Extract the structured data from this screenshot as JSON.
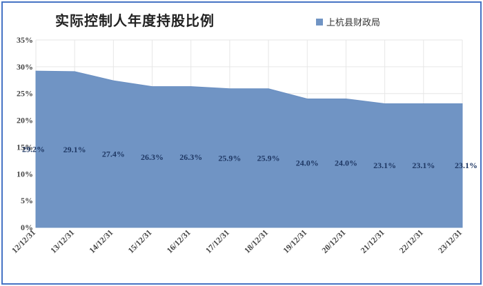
{
  "chart_data": {
    "type": "area",
    "title": "实际控制人年度持股比例",
    "series": [
      {
        "name": "上杭县财政局",
        "values": [
          29.2,
          29.1,
          27.4,
          26.3,
          26.3,
          25.9,
          25.9,
          24.0,
          24.0,
          23.1,
          23.1,
          23.1
        ],
        "data_labels": [
          "29.2%",
          "29.1%",
          "27.4%",
          "26.3%",
          "26.3%",
          "25.9%",
          "25.9%",
          "24.0%",
          "24.0%",
          "23.1%",
          "23.1%",
          "23.1%"
        ]
      }
    ],
    "categories": [
      "12/12/31",
      "13/12/31",
      "14/12/31",
      "15/12/31",
      "16/12/31",
      "17/12/31",
      "18/12/31",
      "19/12/31",
      "20/12/31",
      "21/12/31",
      "22/12/31",
      "23/12/31"
    ],
    "y_ticks": [
      "0%",
      "5%",
      "10%",
      "15%",
      "20%",
      "25%",
      "30%",
      "35%"
    ],
    "ylim": [
      0,
      35
    ],
    "grid": true,
    "legend_position": "top-right",
    "colors": {
      "area": "#7094c4",
      "area_edge": "#6a8fc2",
      "grid": "#e6e6e6",
      "frame": "#4472c4"
    }
  }
}
